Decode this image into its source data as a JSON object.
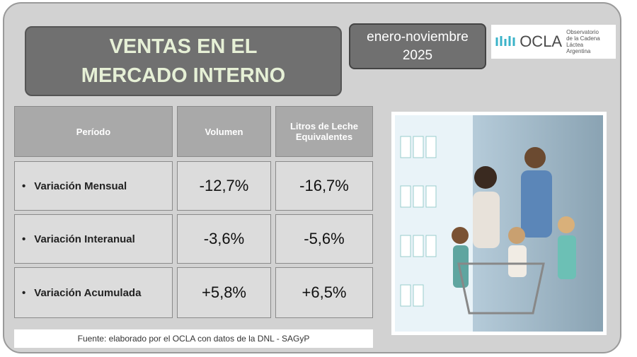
{
  "header": {
    "title": "VENTAS EN EL MERCADO INTERNO",
    "period": [
      "enero-noviembre",
      "2025"
    ],
    "logo": {
      "name": "OCLA",
      "subtitle": [
        "Observatorio",
        "de la Cadena Láctea",
        "Argentina"
      ]
    }
  },
  "table": {
    "columns": [
      "Período",
      "Volumen",
      "Litros de Leche Equivalentes"
    ],
    "rows": [
      [
        "Variación Mensual",
        "-12,7%",
        "-16,7%"
      ],
      [
        "Variación Interanual",
        "-3,6%",
        "-5,6%"
      ],
      [
        "Variación Acumulada",
        "+5,8%",
        "+6,5%"
      ]
    ]
  },
  "source": "Fuente: elaborado por el OCLA con datos de la DNL - SAGyP"
}
